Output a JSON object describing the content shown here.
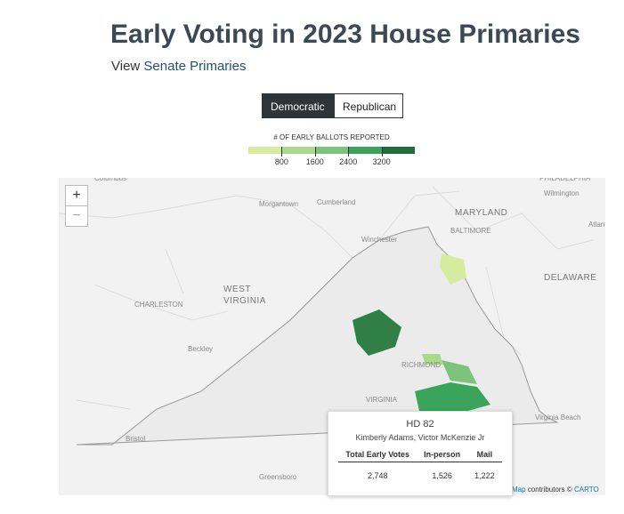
{
  "header": {
    "title": "Early Voting in 2023 House Primaries",
    "link_prefix": "View",
    "link": "Senate Primaries"
  },
  "toggle": {
    "options": [
      "Democratic",
      "Republican"
    ],
    "selected": "Democratic"
  },
  "legend": {
    "title": "# OF EARLY BALLOTS REPORTED",
    "colors": [
      "#d5eb9e",
      "#a9d98b",
      "#7cc47b",
      "#3aa55a",
      "#1e6e3c"
    ],
    "ticks": [
      800,
      1600,
      2400,
      3200
    ]
  },
  "map": {
    "zoom_in": "+",
    "zoom_out": "−",
    "places": [
      "Columbus",
      "Morgantown",
      "Cumberland",
      "Winchester",
      "MARYLAND",
      "BALTIMORE",
      "PHILADELPHIA",
      "Wilmington",
      "Atlantic",
      "DELAWARE",
      "WEST",
      "VIRGINIA",
      "CHARLESTON",
      "Beckley",
      "RICHMOND",
      "VIRGINIA",
      "Virginia Beach",
      "Bristol",
      "Greensboro"
    ],
    "attribution": {
      "link": "Map",
      "text": "contributors ©",
      "carto": "CARTO"
    }
  },
  "tooltip": {
    "district": "HD 82",
    "candidates": "Kimberly Adams, Victor McKenzie Jr",
    "columns": [
      "Total Early Votes",
      "In-person",
      "Mail"
    ],
    "row": [
      "2,748",
      "1,526",
      "1,222"
    ]
  }
}
